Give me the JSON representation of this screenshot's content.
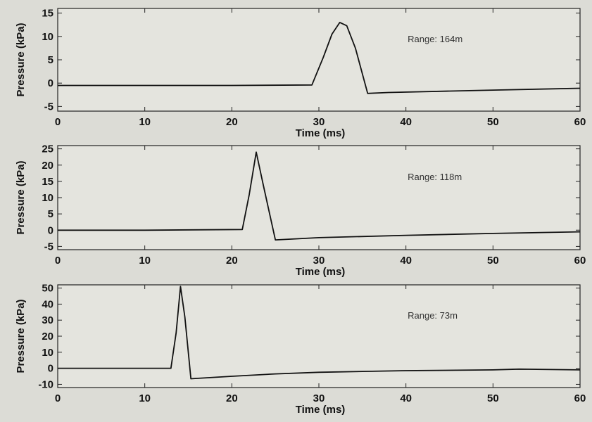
{
  "chart_data": [
    {
      "type": "line",
      "xlabel": "Time (ms)",
      "ylabel": "Pressure (kPa)",
      "xlim": [
        0,
        60
      ],
      "ylim": [
        -6,
        16
      ],
      "xticks": [
        "0",
        "10",
        "20",
        "30",
        "40",
        "50",
        "60"
      ],
      "yticks": [
        -5,
        0,
        5,
        10,
        15
      ],
      "annotation": "Range: 164m",
      "grid": false,
      "series": [
        {
          "x": [
            0,
            10,
            20,
            29.2,
            30.5,
            31.5,
            32.4,
            33.2,
            34.2,
            35.6,
            38,
            45,
            50,
            55,
            60
          ],
          "y": [
            -0.5,
            -0.5,
            -0.5,
            -0.4,
            5.5,
            10.5,
            13.0,
            12.3,
            7.5,
            -2.2,
            -2.0,
            -1.7,
            -1.5,
            -1.3,
            -1.1
          ]
        }
      ]
    },
    {
      "type": "line",
      "xlabel": "Time (ms)",
      "ylabel": "Pressure (kPa)",
      "xlim": [
        0,
        60
      ],
      "ylim": [
        -6,
        26
      ],
      "xticks": [
        "0",
        "10",
        "20",
        "30",
        "40",
        "50",
        "60"
      ],
      "yticks": [
        -5,
        0,
        5,
        10,
        15,
        20,
        25
      ],
      "annotation": "Range: 118m",
      "grid": false,
      "series": [
        {
          "x": [
            0,
            10,
            21.2,
            22.0,
            22.8,
            23.6,
            25.0,
            30,
            40,
            50,
            60
          ],
          "y": [
            0,
            0,
            0.2,
            11,
            24,
            14,
            -3.0,
            -2.3,
            -1.6,
            -1.0,
            -0.5
          ]
        }
      ]
    },
    {
      "type": "line",
      "xlabel": "Time (ms)",
      "ylabel": "Pressure (kPa)",
      "xlim": [
        0,
        60
      ],
      "ylim": [
        -12,
        52
      ],
      "xticks": [
        "0",
        "10",
        "20",
        "30",
        "40",
        "50",
        "60"
      ],
      "yticks": [
        -10,
        0,
        10,
        20,
        30,
        40,
        50
      ],
      "annotation": "Range: 73m",
      "grid": false,
      "series": [
        {
          "x": [
            0,
            10,
            13.0,
            13.6,
            14.1,
            14.6,
            15.3,
            20,
            25,
            30,
            40,
            50,
            53,
            60
          ],
          "y": [
            0,
            0,
            0,
            22,
            51,
            32,
            -6.5,
            -5,
            -3.5,
            -2.5,
            -1.5,
            -1.0,
            -0.5,
            -1.0
          ]
        }
      ]
    }
  ]
}
